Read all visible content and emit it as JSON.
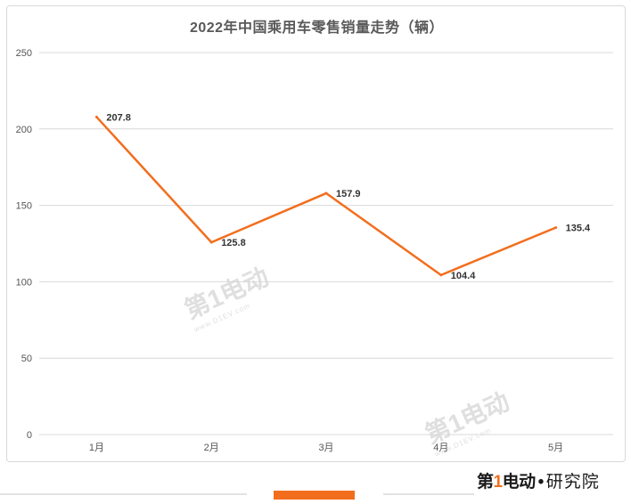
{
  "chart_data": {
    "type": "line",
    "title": "2022年中国乘用车零售销量走势（辆）",
    "categories": [
      "1月",
      "2月",
      "3月",
      "4月",
      "5月"
    ],
    "series": [
      {
        "values": [
          207.8,
          125.8,
          157.9,
          104.4,
          135.4
        ],
        "color": "#f26e1d"
      }
    ],
    "data_labels": [
      "207.8",
      "125.8",
      "157.9",
      "104.4",
      "135.4"
    ],
    "yticks": [
      "0",
      "50",
      "100",
      "150",
      "200",
      "250"
    ],
    "ylim": [
      0,
      250
    ],
    "grid": true,
    "legend": "none"
  },
  "watermark": {
    "text": "第1电动",
    "url": "www.D1EV.com"
  },
  "branding": {
    "logo_main": "第",
    "logo_one": "1",
    "logo_rest": "电动",
    "logo_dot": "•",
    "logo_sub": "研究院"
  },
  "colors": {
    "accent": "#f26e1d",
    "grid": "#d9d9d9",
    "axis_text": "#555555"
  }
}
